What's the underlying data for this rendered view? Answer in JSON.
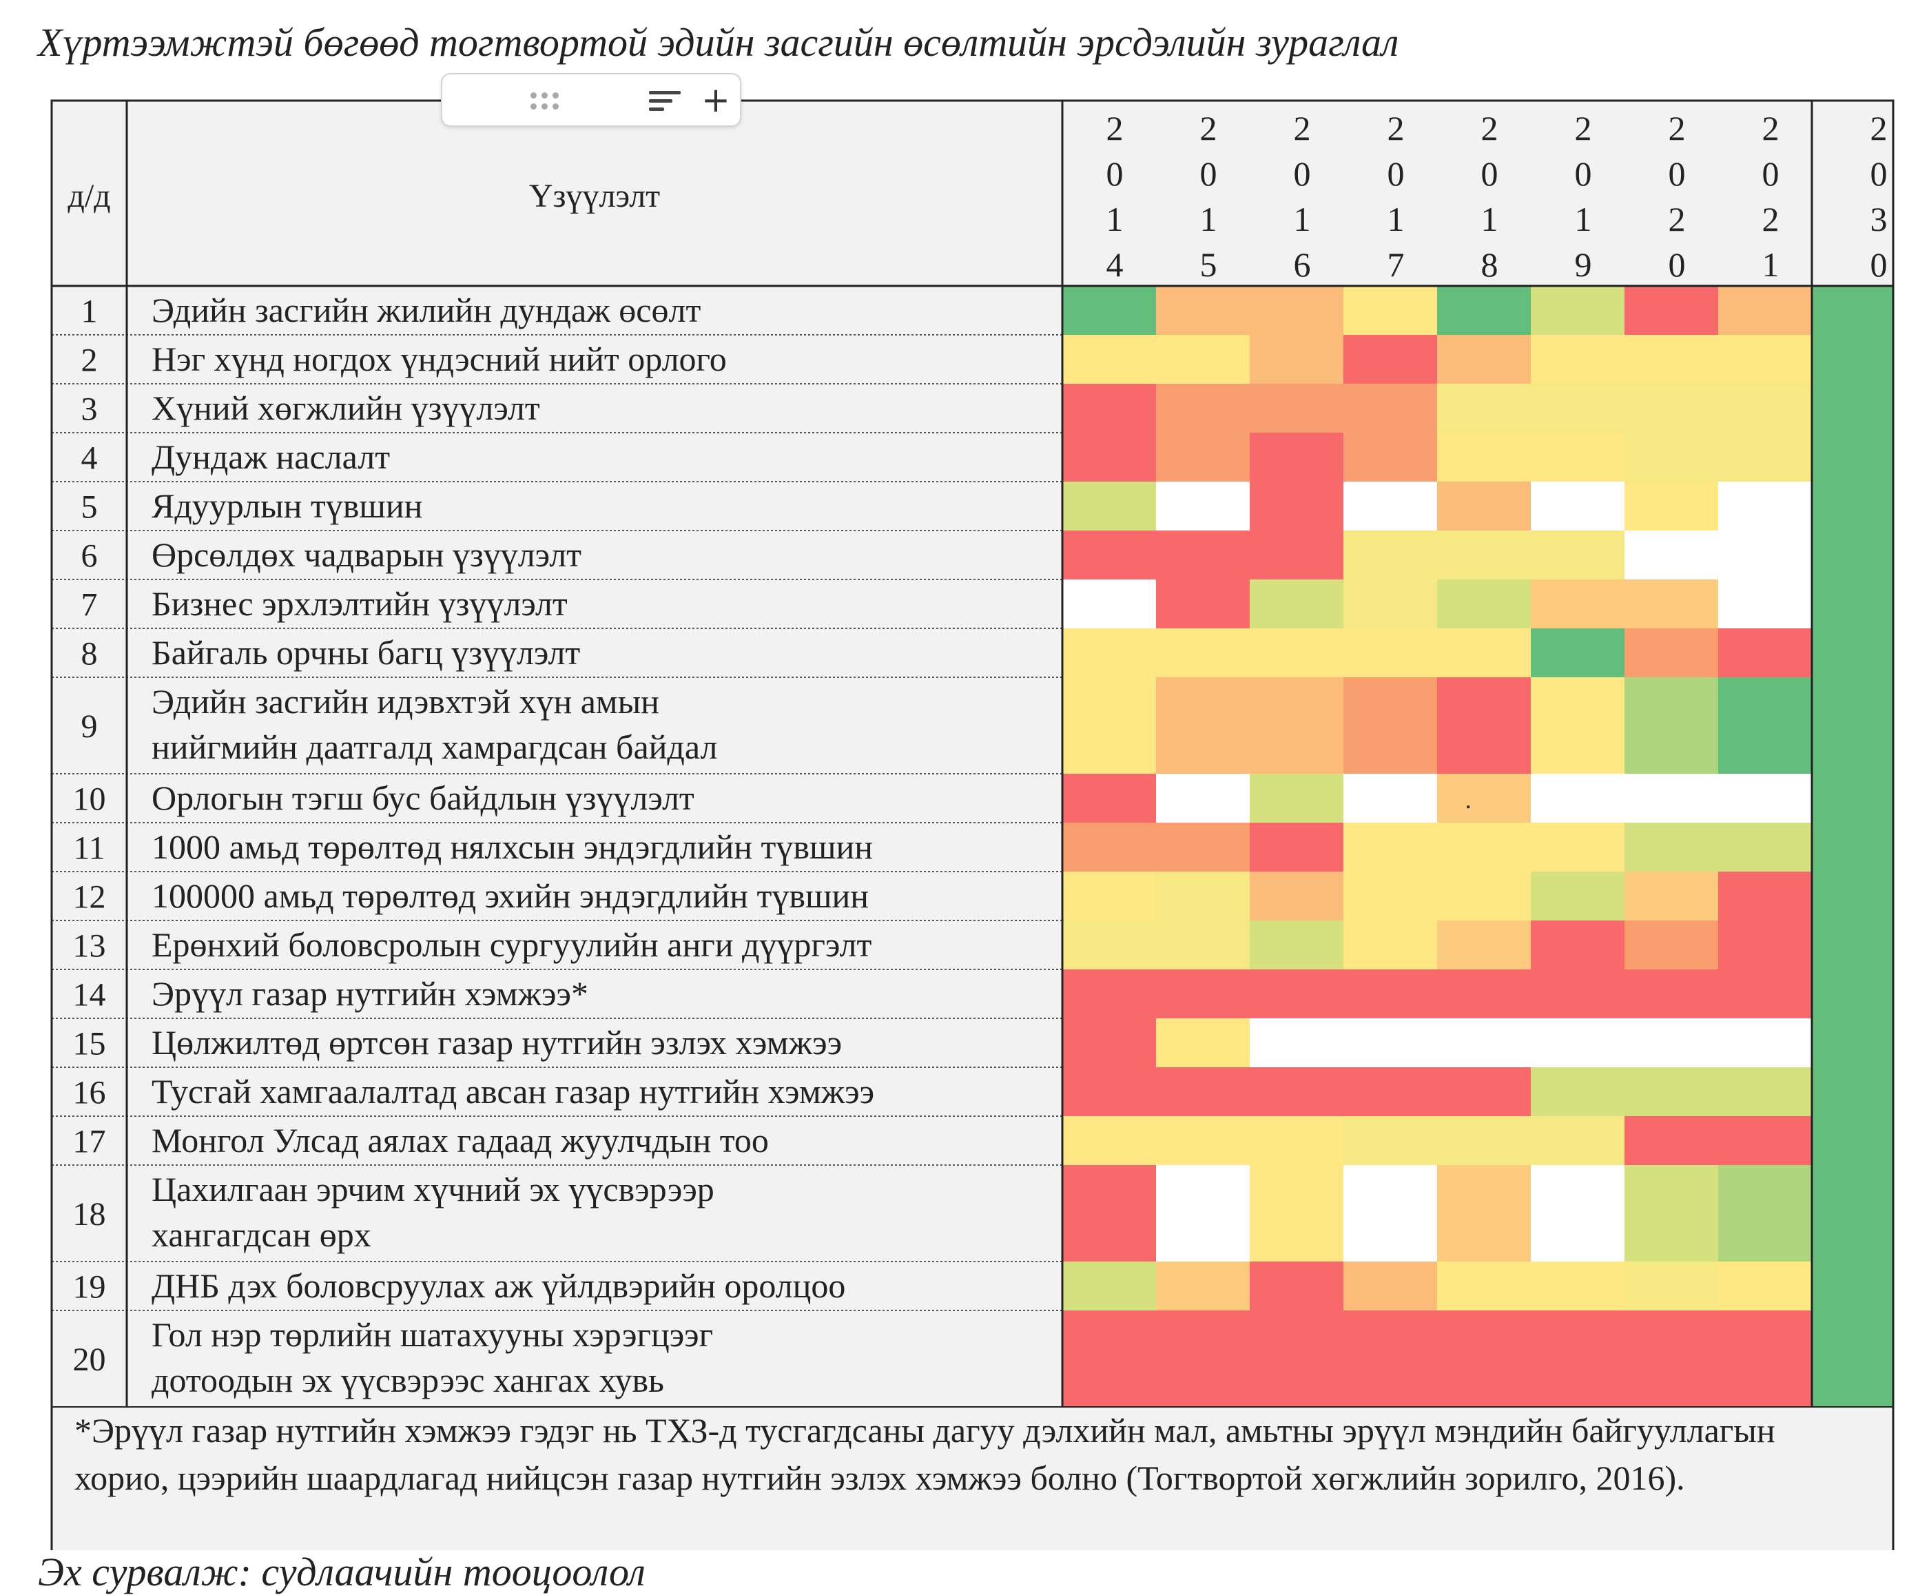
{
  "caption_top": "Хүртээмжтэй бөгөөд тогтвортой эдийн засгийн өсөлтийн эрсдэлийн зураглал",
  "caption_bottom": "Эх сурвалж: судлаачийн тооцоолол",
  "footnote": "*Эрүүл газар нутгийн хэмжээ гэдэг нь ТХЗ-д тусгагдсаны дагуу дэлхийн мал, амьтны эрүүл мэндийн байгууллагын хорио, цээрийн шаардлагад нийцсэн газар нутгийн эзлэх хэмжээ болно (Тогтвортой хөгжлийн зорилго, 2016).",
  "toolbar": {
    "drag_icon": "drag-handle-icon",
    "sort_icon": "sort-icon",
    "add_icon": "plus-icon",
    "add_label": "+"
  },
  "colors": {
    "G": "#63be7b",
    "LG": "#acd57d",
    "YG": "#d5e17f",
    "YL": "#f6e883",
    "Y": "#ffe784",
    "LO": "#fdcb7e",
    "O": "#fbbb79",
    "DO": "#f99f6f",
    "R": "#f8696b",
    "W": "#ffffff"
  },
  "chart_data": {
    "type": "heatmap",
    "header_no": "д/д",
    "header_indicator": "Үзүүлэлт",
    "years": [
      "2014",
      "2015",
      "2016",
      "2017",
      "2018",
      "2019",
      "2020",
      "2021"
    ],
    "target_year": "2030",
    "rows": [
      {
        "no": "1",
        "label": "Эдийн засгийн жилийн дундаж өсөлт",
        "cells": [
          "G",
          "O",
          "O",
          "Y",
          "G",
          "YG",
          "R",
          "O"
        ],
        "target": "G"
      },
      {
        "no": "2",
        "label": "Нэг хүнд ногдох үндэсний нийт орлого",
        "cells": [
          "Y",
          "Y",
          "O",
          "R",
          "O",
          "Y",
          "Y",
          "Y"
        ],
        "target": "G"
      },
      {
        "no": "3",
        "label": "Хүний хөгжлийн үзүүлэлт",
        "cells": [
          "R",
          "DO",
          "DO",
          "DO",
          "YL",
          "YL",
          "YL",
          "YL"
        ],
        "target": "G"
      },
      {
        "no": "4",
        "label": "Дундаж наслалт",
        "cells": [
          "R",
          "DO",
          "R",
          "DO",
          "Y",
          "Y",
          "YL",
          "YL"
        ],
        "target": "G"
      },
      {
        "no": "5",
        "label": "Ядуурлын түвшин",
        "cells": [
          "YG",
          "W",
          "R",
          "W",
          "O",
          "W",
          "Y",
          "W"
        ],
        "target": "G"
      },
      {
        "no": "6",
        "label": "Өрсөлдөх чадварын үзүүлэлт",
        "cells": [
          "R",
          "R",
          "R",
          "YL",
          "YL",
          "YL",
          "W",
          "W"
        ],
        "target": "G"
      },
      {
        "no": "7",
        "label": "Бизнес эрхлэлтийн үзүүлэлт",
        "cells": [
          "W",
          "R",
          "YG",
          "YL",
          "YG",
          "LO",
          "LO",
          "W"
        ],
        "target": "G"
      },
      {
        "no": "8",
        "label": "Байгаль орчны багц үзүүлэлт",
        "cells": [
          "Y",
          "Y",
          "Y",
          "Y",
          "Y",
          "G",
          "DO",
          "R"
        ],
        "target": "G"
      },
      {
        "no": "9",
        "label": "Эдийн засгийн идэвхтэй хүн амын нийгмийн даатгалд хамрагдсан байдал",
        "cells": [
          "Y",
          "O",
          "O",
          "DO",
          "R",
          "Y",
          "LG",
          "G"
        ],
        "target": "G"
      },
      {
        "no": "10",
        "label": "Орлогын тэгш бус байдлын үзүүлэлт",
        "cells": [
          "R",
          "W",
          "YG",
          "W",
          "LO",
          "W",
          "W",
          "W"
        ],
        "target": "G",
        "mark": "."
      },
      {
        "no": "11",
        "label": "1000 амьд төрөлтөд нялхсын эндэгдлийн түвшин",
        "cells": [
          "DO",
          "DO",
          "R",
          "Y",
          "Y",
          "Y",
          "YG",
          "YG"
        ],
        "target": "G"
      },
      {
        "no": "12",
        "label": "100000 амьд төрөлтөд эхийн эндэгдлийн түвшин",
        "cells": [
          "Y",
          "YL",
          "O",
          "Y",
          "Y",
          "YG",
          "LO",
          "R"
        ],
        "target": "G"
      },
      {
        "no": "13",
        "label": "Ерөнхий боловсролын сургуулийн анги дүүргэлт",
        "cells": [
          "YL",
          "YL",
          "YG",
          "Y",
          "LO",
          "R",
          "DO",
          "R"
        ],
        "target": "G"
      },
      {
        "no": "14",
        "label": "Эрүүл газар нутгийн хэмжээ*",
        "cells": [
          "R",
          "R",
          "R",
          "R",
          "R",
          "R",
          "R",
          "R"
        ],
        "target": "G"
      },
      {
        "no": "15",
        "label": "Цөлжилтөд өртсөн газар нутгийн эзлэх хэмжээ",
        "cells": [
          "R",
          "Y",
          "W",
          "W",
          "W",
          "W",
          "W",
          "W"
        ],
        "target": "G"
      },
      {
        "no": "16",
        "label": "Тусгай хамгаалалтад авсан газар нутгийн хэмжээ",
        "cells": [
          "R",
          "R",
          "R",
          "R",
          "R",
          "YG",
          "YG",
          "YG"
        ],
        "target": "G"
      },
      {
        "no": "17",
        "label": "Монгол Улсад аялах гадаад жуулчдын тоо",
        "cells": [
          "Y",
          "Y",
          "Y",
          "YL",
          "YL",
          "YL",
          "R",
          "R"
        ],
        "target": "G"
      },
      {
        "no": "18",
        "label": "Цахилгаан эрчим хүчний эх үүсвэрээр хангагдсан өрх",
        "cells": [
          "R",
          "W",
          "Y",
          "W",
          "LO",
          "W",
          "YG",
          "LG"
        ],
        "target": "G"
      },
      {
        "no": "19",
        "label": "ДНБ дэх боловсруулах аж үйлдвэрийн оролцоо",
        "cells": [
          "YG",
          "LO",
          "R",
          "O",
          "Y",
          "Y",
          "YL",
          "Y"
        ],
        "target": "G"
      },
      {
        "no": "20",
        "label": "Гол нэр төрлийн шатахууны хэрэгцээг дотоодын эх үүсвэрээс хангах хувь",
        "cells": [
          "R",
          "R",
          "R",
          "R",
          "R",
          "R",
          "R",
          "R"
        ],
        "target": "G"
      }
    ]
  }
}
